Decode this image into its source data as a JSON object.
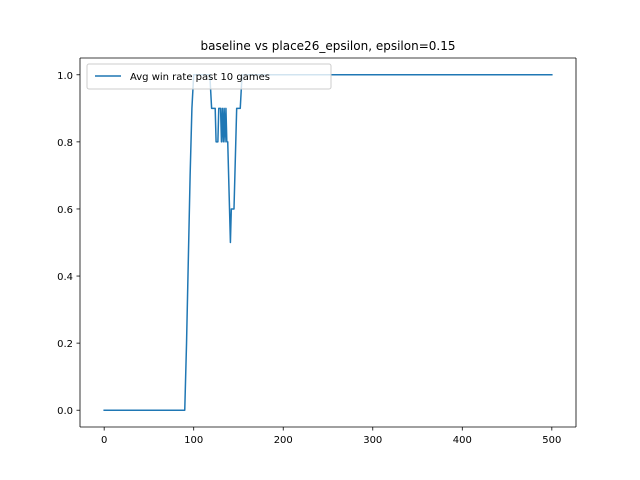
{
  "chart_data": {
    "type": "line",
    "title": "baseline vs place26_epsilon, epsilon=0.15",
    "xlabel": "",
    "ylabel": "",
    "xlim": [
      -27,
      527
    ],
    "ylim": [
      -0.05,
      1.05
    ],
    "x_ticks": [
      0,
      100,
      200,
      300,
      400,
      500
    ],
    "x_tick_labels": [
      "0",
      "100",
      "200",
      "300",
      "400",
      "500"
    ],
    "y_ticks": [
      0.0,
      0.2,
      0.4,
      0.6,
      0.8,
      1.0
    ],
    "y_tick_labels": [
      "0.0",
      "0.2",
      "0.4",
      "0.6",
      "0.8",
      "1.0"
    ],
    "grid": false,
    "legend_position": "top-left",
    "series": [
      {
        "name": "Avg win rate past 10 games",
        "color": "#1f77b4",
        "x": [
          0,
          90,
          92,
          96,
          98,
          100,
          102,
          105,
          108,
          110,
          112,
          115,
          118,
          120,
          122,
          124,
          125,
          126,
          127,
          128,
          130,
          131,
          132,
          133,
          134,
          135,
          136,
          137,
          138,
          139,
          140,
          141,
          142,
          143,
          145,
          147,
          148,
          150,
          152,
          154,
          156,
          157,
          160,
          200,
          300,
          400,
          500
        ],
        "y": [
          0.0,
          0.0,
          0.2,
          0.7,
          0.9,
          1.0,
          1.0,
          1.0,
          1.0,
          1.0,
          1.0,
          1.0,
          1.0,
          0.9,
          0.9,
          0.9,
          0.8,
          0.8,
          0.8,
          0.9,
          0.9,
          0.8,
          0.9,
          0.8,
          0.9,
          0.8,
          0.9,
          0.8,
          0.8,
          0.7,
          0.6,
          0.5,
          0.6,
          0.6,
          0.6,
          0.8,
          0.9,
          0.9,
          0.9,
          1.0,
          1.0,
          1.0,
          1.0,
          1.0,
          1.0,
          1.0,
          1.0
        ]
      }
    ]
  }
}
